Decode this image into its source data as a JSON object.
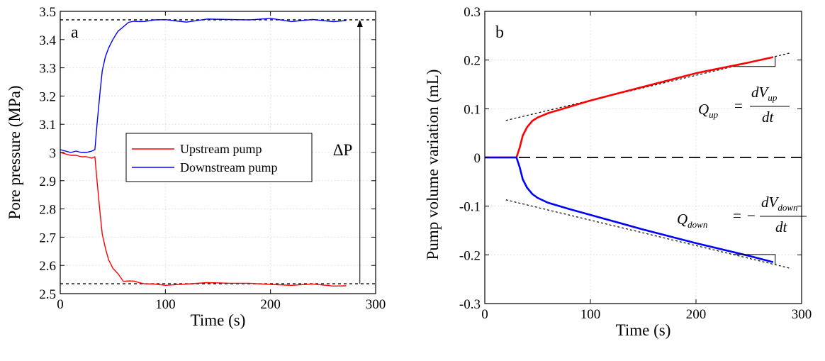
{
  "chart_data": [
    {
      "type": "line",
      "panel_label": "a",
      "xlabel": "Time (s)",
      "ylabel": "Pore pressure (MPa)",
      "xlim": [
        0,
        300
      ],
      "ylim": [
        2.5,
        3.5
      ],
      "xticks": [
        0,
        100,
        200,
        300
      ],
      "yticks": [
        2.5,
        2.6,
        2.7,
        2.8,
        2.9,
        3,
        3.1,
        3.2,
        3.3,
        3.4,
        3.5
      ],
      "xtick_labels": [
        "0",
        "100",
        "200",
        "300"
      ],
      "ytick_labels": [
        "2.5",
        "2.6",
        "2.7",
        "2.8",
        "2.9",
        "3",
        "3.1",
        "3.2",
        "3.3",
        "3.4",
        "3.5"
      ],
      "grid": true,
      "legend": "center-left",
      "series": [
        {
          "name": "Upstream pump",
          "color": "#ff0000",
          "x": [
            0,
            5,
            10,
            15,
            20,
            25,
            30,
            33,
            35,
            38,
            40,
            43,
            46,
            50,
            55,
            60,
            65,
            70,
            75,
            80,
            90,
            100,
            120,
            140,
            160,
            180,
            200,
            220,
            240,
            260,
            272
          ],
          "y": [
            3.0,
            2.995,
            2.99,
            2.99,
            2.985,
            2.985,
            2.98,
            2.985,
            2.9,
            2.78,
            2.71,
            2.66,
            2.62,
            2.59,
            2.57,
            2.55,
            2.545,
            2.54,
            2.535,
            2.535,
            2.535,
            2.532,
            2.535,
            2.533,
            2.538,
            2.532,
            2.535,
            2.533,
            2.534,
            2.532,
            2.533
          ]
        },
        {
          "name": "Downstream pump",
          "color": "#0000ff",
          "x": [
            0,
            5,
            10,
            15,
            20,
            25,
            30,
            33,
            35,
            38,
            40,
            43,
            46,
            50,
            55,
            60,
            65,
            70,
            75,
            80,
            90,
            100,
            120,
            140,
            160,
            180,
            200,
            220,
            240,
            260,
            272
          ],
          "y": [
            3.01,
            3.005,
            3.0,
            3.005,
            3.0,
            3.0,
            3.005,
            3.01,
            3.1,
            3.22,
            3.29,
            3.34,
            3.37,
            3.4,
            3.43,
            3.445,
            3.455,
            3.46,
            3.465,
            3.468,
            3.47,
            3.47,
            3.468,
            3.47,
            3.47,
            3.468,
            3.47,
            3.468,
            3.47,
            3.468,
            3.468
          ]
        }
      ],
      "reference_lines": [
        {
          "y": 3.47,
          "x_range": [
            0,
            300
          ],
          "style": "dotted"
        },
        {
          "y": 2.535,
          "x_range": [
            0,
            300
          ],
          "style": "dotted"
        }
      ],
      "annotation": {
        "label": "ΔP",
        "x": 285,
        "y_from": 2.535,
        "y_to": 3.47
      }
    },
    {
      "type": "line",
      "panel_label": "b",
      "xlabel": "Time (s)",
      "ylabel": "Pump volume variation (mL)",
      "xlim": [
        0,
        300
      ],
      "ylim": [
        -0.3,
        0.3
      ],
      "xticks": [
        0,
        100,
        200,
        300
      ],
      "yticks": [
        -0.3,
        -0.2,
        -0.1,
        0,
        0.1,
        0.2,
        0.3
      ],
      "xtick_labels": [
        "0",
        "100",
        "200",
        "300"
      ],
      "ytick_labels": [
        "-0.3",
        "-0.2",
        "-0.1",
        "0",
        "0.1",
        "0.2",
        "0.3"
      ],
      "grid": true,
      "series": [
        {
          "color": "#ff0000",
          "x": [
            0,
            10,
            20,
            30,
            33,
            36,
            40,
            45,
            50,
            60,
            80,
            100,
            150,
            200,
            250,
            273
          ],
          "y": [
            0,
            0,
            0,
            0,
            0.02,
            0.045,
            0.062,
            0.075,
            0.082,
            0.091,
            0.104,
            0.117,
            0.145,
            0.173,
            0.195,
            0.206
          ]
        },
        {
          "color": "#0000ff",
          "x": [
            0,
            10,
            20,
            30,
            33,
            36,
            40,
            45,
            50,
            60,
            80,
            100,
            150,
            200,
            250,
            273
          ],
          "y": [
            0,
            0,
            0,
            0,
            -0.02,
            -0.045,
            -0.062,
            -0.075,
            -0.083,
            -0.093,
            -0.106,
            -0.118,
            -0.148,
            -0.176,
            -0.202,
            -0.215
          ]
        }
      ],
      "zero_line": {
        "y": 0,
        "style": "dashed"
      },
      "tangent_lines": [
        {
          "x": [
            20,
            290
          ],
          "y": [
            0.076,
            0.215
          ],
          "style": "dotted"
        },
        {
          "x": [
            20,
            290
          ],
          "y": [
            -0.087,
            -0.228
          ],
          "style": "dotted"
        }
      ],
      "equations": {
        "up": {
          "lhs": "Q",
          "lhs_sub": "up",
          "num": "dV",
          "num_sub": "up",
          "den": "dt"
        },
        "down": {
          "lhs": "Q",
          "lhs_sub": "down",
          "num": "dV",
          "num_sub": "down",
          "den": "dt"
        }
      }
    }
  ]
}
